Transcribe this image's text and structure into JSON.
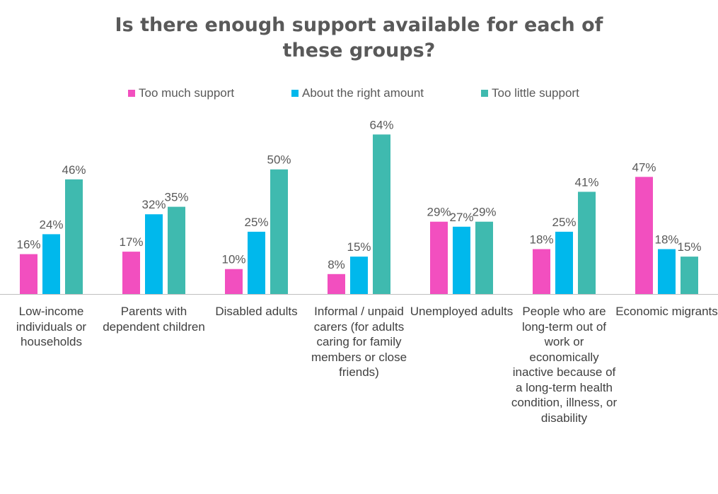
{
  "chart_data": {
    "type": "bar",
    "title": "Is there enough support available for each of these groups?",
    "categories": [
      "Low-income individuals or households",
      "Parents with dependent children",
      "Disabled adults",
      "Informal / unpaid carers (for adults caring for family members or close friends)",
      "Unemployed adults",
      "People who are long-term out of work or economically inactive because of a long-term health condition, illness, or disability",
      "Economic migrants"
    ],
    "series": [
      {
        "name": "Too much support",
        "color": "#F24FBF",
        "values": [
          16,
          17,
          10,
          8,
          29,
          18,
          47
        ]
      },
      {
        "name": "About the right amount",
        "color": "#00B8EC",
        "values": [
          24,
          32,
          25,
          15,
          27,
          25,
          18
        ]
      },
      {
        "name": "Too little support",
        "color": "#3FBAAF",
        "values": [
          46,
          35,
          50,
          64,
          29,
          41,
          15
        ]
      }
    ],
    "value_suffix": "%",
    "legend_position": "top",
    "grid": false,
    "ylim": [
      0,
      64
    ]
  }
}
